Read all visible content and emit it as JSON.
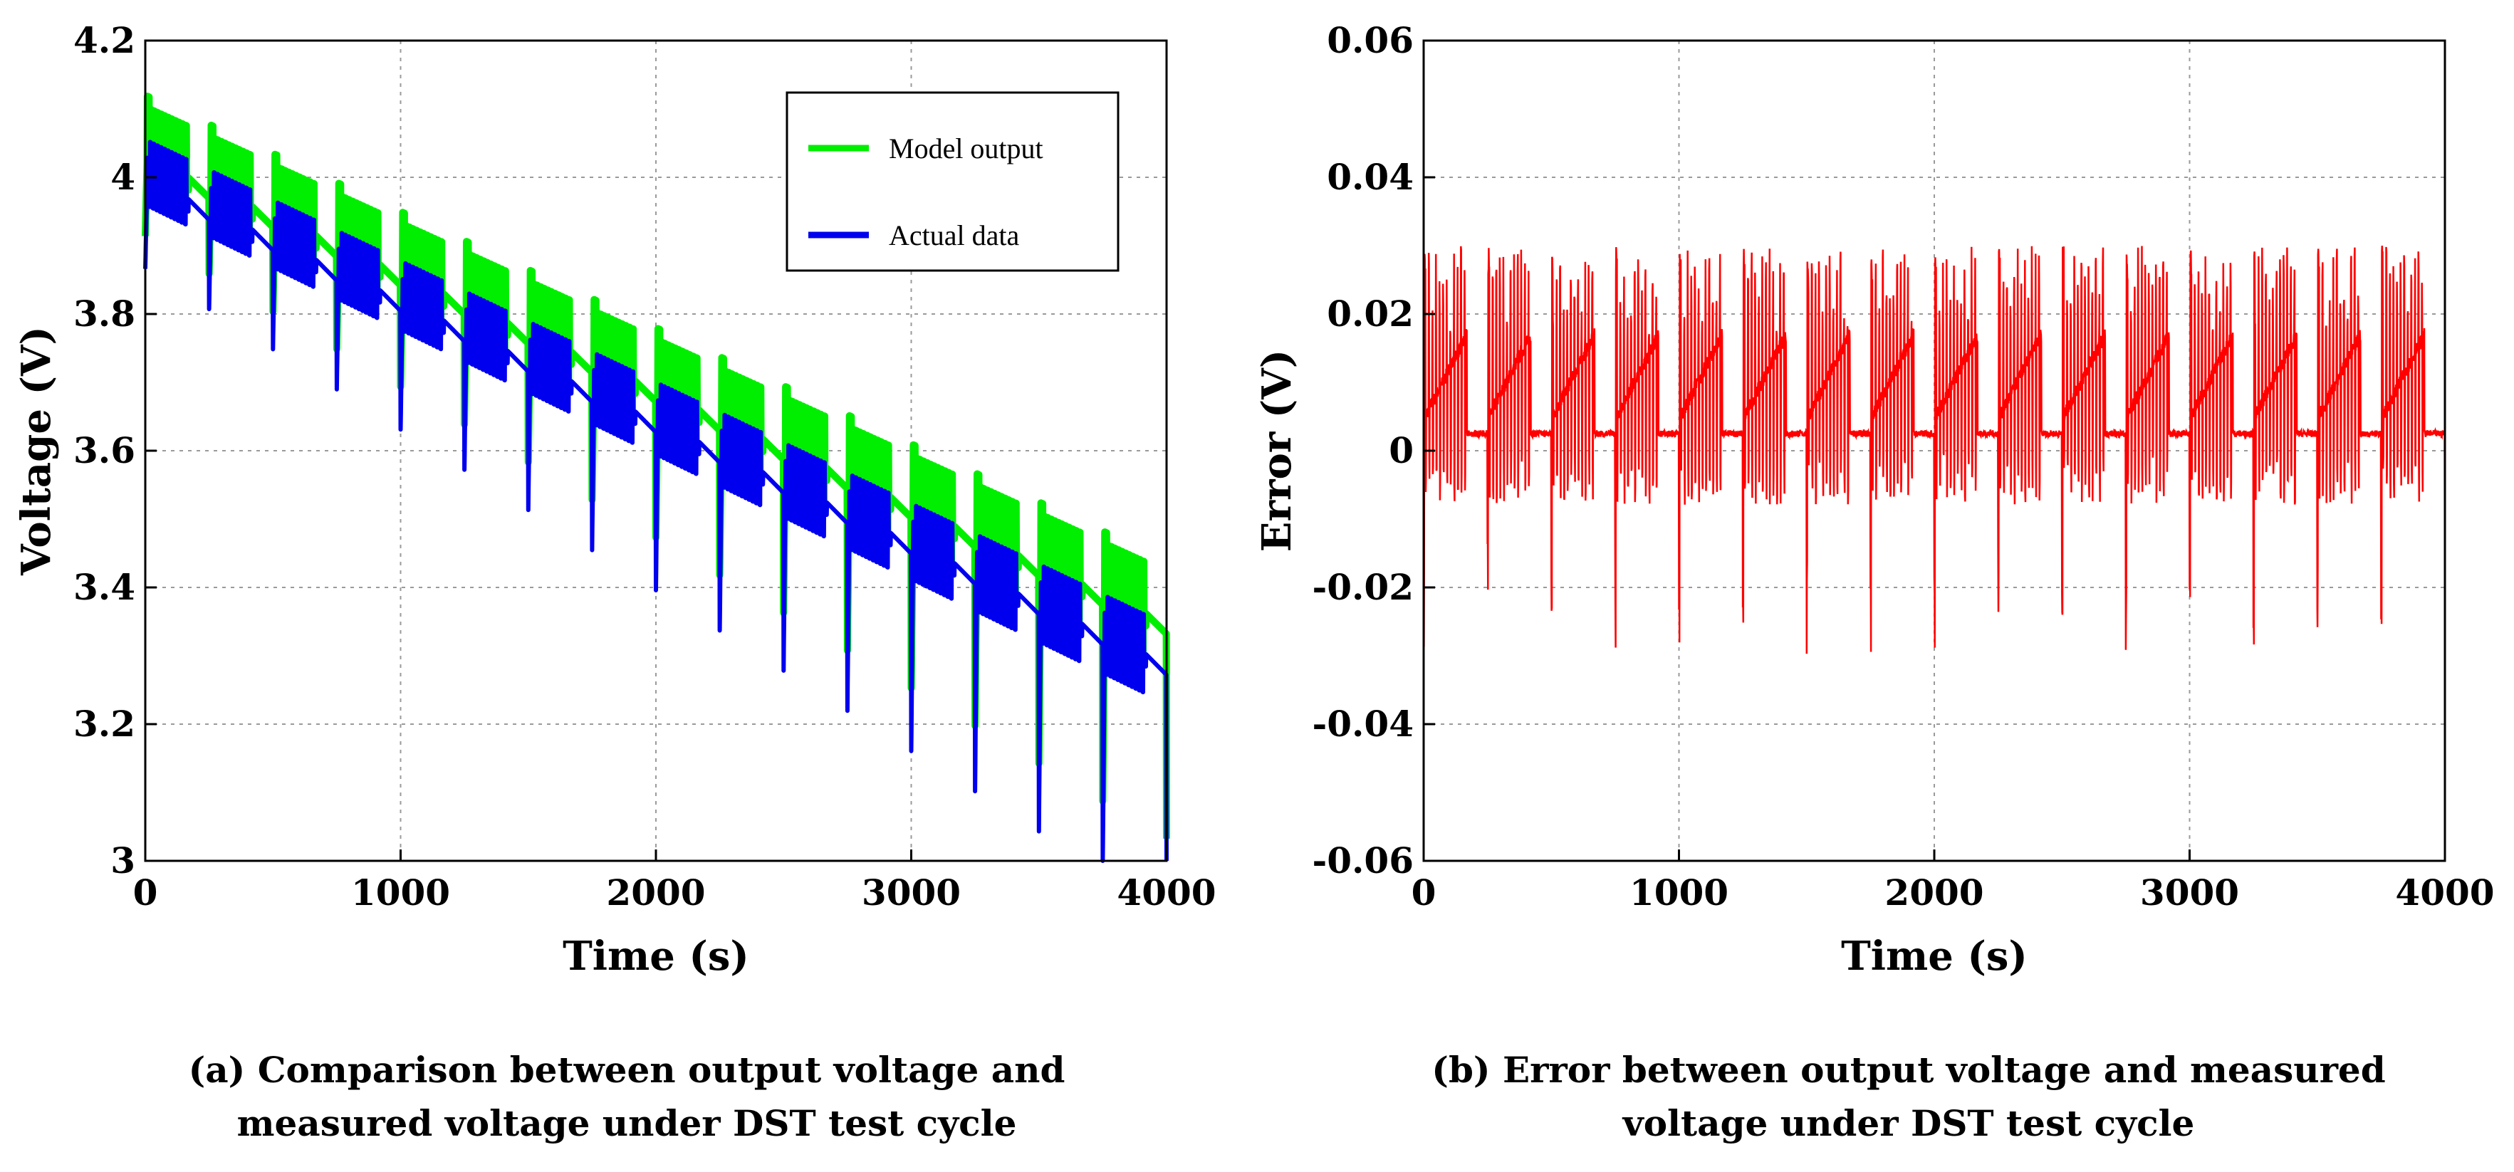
{
  "chart_data": [
    {
      "type": "line",
      "id": "a",
      "xlabel": "Time (s)",
      "ylabel": "Voltage (V)",
      "xlim": [
        0,
        4000
      ],
      "ylim": [
        3,
        4.2
      ],
      "xticks": [
        0,
        1000,
        2000,
        3000,
        4000
      ],
      "xtick_labels": [
        "0",
        "1000",
        "2000",
        "3000",
        "4000"
      ],
      "yticks": [
        3,
        3.2,
        3.4,
        3.6,
        3.8,
        4,
        4.2
      ],
      "ytick_labels": [
        "3",
        "3.2",
        "3.4",
        "3.6",
        "3.8",
        "4",
        "4.2"
      ],
      "grid": true,
      "legend_position": "top-right",
      "series": [
        {
          "name": "Model output",
          "color": "#00ee00",
          "cycle_period": 250,
          "start_level": 4.04,
          "end_level": 3.36,
          "charge_spike": 0.05,
          "discharge_dip": 0.14
        },
        {
          "name": "Actual data",
          "color": "#0000ee",
          "cycle_period": 250,
          "start_level": 4.01,
          "end_level": 3.3,
          "charge_spike": 0.02,
          "discharge_dip": 0.16
        }
      ],
      "caption_lines": [
        "(a) Comparison  between output voltage and",
        "measured voltage under DST test cycle"
      ]
    },
    {
      "type": "line",
      "id": "b",
      "xlabel": "Time (s)",
      "ylabel": "Error (V)",
      "xlim": [
        0,
        4000
      ],
      "ylim": [
        -0.06,
        0.06
      ],
      "xticks": [
        0,
        1000,
        2000,
        3000,
        4000
      ],
      "xtick_labels": [
        "0",
        "1000",
        "2000",
        "3000",
        "4000"
      ],
      "yticks": [
        -0.06,
        -0.04,
        -0.02,
        0,
        0.02,
        0.04,
        0.06
      ],
      "ytick_labels": [
        "-0.06",
        "-0.04",
        "-0.02",
        "0",
        "0.02",
        "0.04",
        "0.06"
      ],
      "grid": true,
      "series": [
        {
          "name": "Error",
          "color": "#ff0000",
          "cycle_period": 250,
          "max_error": 0.03,
          "min_error": -0.03
        }
      ],
      "caption_lines": [
        "(b) Error between output voltage and measured",
        "voltage under DST test cycle"
      ]
    }
  ]
}
